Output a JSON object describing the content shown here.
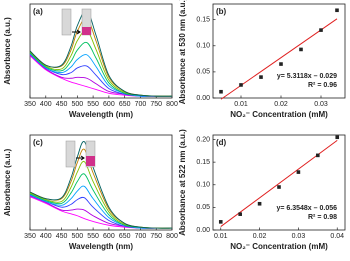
{
  "chart_data": [
    {
      "type": "line",
      "title": "(a)",
      "x_label": "Wavelength (nm)",
      "y_label": "Absorbance (a.u.)",
      "x": [
        350,
        400,
        450,
        480,
        500,
        530,
        560,
        600,
        650,
        700,
        750,
        800
      ],
      "xlim": [
        350,
        800
      ],
      "xticks": [
        350,
        400,
        450,
        500,
        550,
        600,
        650,
        700,
        750,
        800
      ],
      "ylim": [
        0,
        1
      ],
      "series": [
        {
          "color": "#ff00ff",
          "values": [
            0.45,
            0.3,
            0.21,
            0.17,
            0.15,
            0.12,
            0.09,
            0.05,
            0.03,
            0.02,
            0.02,
            0.02
          ]
        },
        {
          "color": "#b000e0",
          "values": [
            0.46,
            0.31,
            0.22,
            0.21,
            0.22,
            0.21,
            0.15,
            0.07,
            0.04,
            0.02,
            0.02,
            0.02
          ]
        },
        {
          "color": "#3040ff",
          "values": [
            0.47,
            0.32,
            0.25,
            0.27,
            0.32,
            0.34,
            0.24,
            0.1,
            0.04,
            0.02,
            0.02,
            0.02
          ]
        },
        {
          "color": "#00a0ff",
          "values": [
            0.47,
            0.32,
            0.27,
            0.33,
            0.41,
            0.46,
            0.33,
            0.13,
            0.05,
            0.02,
            0.02,
            0.02
          ]
        },
        {
          "color": "#00c060",
          "values": [
            0.48,
            0.33,
            0.29,
            0.39,
            0.51,
            0.59,
            0.42,
            0.16,
            0.05,
            0.03,
            0.02,
            0.02
          ]
        },
        {
          "color": "#80c000",
          "values": [
            0.49,
            0.34,
            0.31,
            0.45,
            0.61,
            0.72,
            0.51,
            0.19,
            0.06,
            0.03,
            0.02,
            0.02
          ]
        },
        {
          "color": "#c08000",
          "values": [
            0.5,
            0.35,
            0.34,
            0.51,
            0.71,
            0.85,
            0.6,
            0.22,
            0.07,
            0.03,
            0.02,
            0.02
          ]
        },
        {
          "color": "#006060",
          "values": [
            0.5,
            0.35,
            0.35,
            0.55,
            0.77,
            0.93,
            0.66,
            0.24,
            0.07,
            0.03,
            0.02,
            0.02
          ]
        }
      ]
    },
    {
      "type": "scatter",
      "title": "(b)",
      "x_label": "NO₂⁻ Concentration (mM)",
      "y_label": "Absorbance at 530 nm (a.u.)",
      "xlim": [
        0.003,
        0.036
      ],
      "xticks": [
        0.01,
        0.02,
        0.03
      ],
      "ylim": [
        0,
        0.18
      ],
      "yticks": [
        {
          "value": 0,
          "label": "0.00"
        },
        {
          "value": 0.05,
          "label": "0.05"
        },
        {
          "value": 0.1,
          "label": "0.10"
        },
        {
          "value": 0.15,
          "label": "0.15"
        }
      ],
      "series": [
        {
          "color": "#222222",
          "x": [
            0.005,
            0.01,
            0.015,
            0.02,
            0.025,
            0.03,
            0.034
          ],
          "values": [
            0.012,
            0.025,
            0.04,
            0.065,
            0.093,
            0.13,
            0.168
          ]
        }
      ],
      "fit": {
        "slope": 5.3118,
        "intercept": -0.029,
        "color": "#e02020"
      },
      "annotations": [
        "y= 5.3118x – 0.029",
        "R² = 0.96"
      ]
    },
    {
      "type": "line",
      "title": "(c)",
      "x_label": "Wavelength (nm)",
      "y_label": "Absorbance (a.u.)",
      "x": [
        350,
        400,
        450,
        480,
        500,
        522,
        550,
        600,
        650,
        700,
        750,
        800
      ],
      "xlim": [
        350,
        800
      ],
      "xticks": [
        350,
        400,
        450,
        500,
        550,
        600,
        650,
        700,
        750,
        800
      ],
      "ylim": [
        0,
        1
      ],
      "series": [
        {
          "color": "#ff00ff",
          "values": [
            0.35,
            0.28,
            0.2,
            0.17,
            0.15,
            0.12,
            0.09,
            0.05,
            0.03,
            0.02,
            0.02,
            0.02
          ]
        },
        {
          "color": "#b000e0",
          "values": [
            0.36,
            0.29,
            0.21,
            0.21,
            0.22,
            0.21,
            0.15,
            0.07,
            0.04,
            0.02,
            0.02,
            0.02
          ]
        },
        {
          "color": "#3040ff",
          "values": [
            0.37,
            0.3,
            0.24,
            0.27,
            0.32,
            0.34,
            0.24,
            0.1,
            0.04,
            0.02,
            0.02,
            0.02
          ]
        },
        {
          "color": "#00a0ff",
          "values": [
            0.37,
            0.3,
            0.26,
            0.33,
            0.41,
            0.46,
            0.33,
            0.13,
            0.05,
            0.02,
            0.02,
            0.02
          ]
        },
        {
          "color": "#00c060",
          "values": [
            0.38,
            0.31,
            0.28,
            0.39,
            0.51,
            0.59,
            0.42,
            0.16,
            0.05,
            0.03,
            0.02,
            0.02
          ]
        },
        {
          "color": "#80c000",
          "values": [
            0.39,
            0.32,
            0.3,
            0.45,
            0.61,
            0.72,
            0.51,
            0.19,
            0.06,
            0.03,
            0.02,
            0.02
          ]
        },
        {
          "color": "#c08000",
          "values": [
            0.4,
            0.33,
            0.33,
            0.51,
            0.71,
            0.85,
            0.6,
            0.22,
            0.07,
            0.03,
            0.02,
            0.02
          ]
        },
        {
          "color": "#006060",
          "values": [
            0.4,
            0.33,
            0.34,
            0.55,
            0.77,
            0.93,
            0.66,
            0.24,
            0.07,
            0.03,
            0.02,
            0.02
          ]
        }
      ]
    },
    {
      "type": "scatter",
      "title": "(d)",
      "x_label": "NO₂⁻ Concentration (mM)",
      "y_label": "Absorbance at 522 nm (a.u.)",
      "xlim": [
        0.008,
        0.042
      ],
      "xticks": [
        0.01,
        0.02,
        0.03,
        0.04
      ],
      "ylim": [
        0,
        0.21
      ],
      "yticks": [
        {
          "value": 0,
          "label": "0.00"
        },
        {
          "value": 0.05,
          "label": "0.05"
        },
        {
          "value": 0.1,
          "label": "0.10"
        },
        {
          "value": 0.15,
          "label": "0.15"
        },
        {
          "value": 0.2,
          "label": "0.20"
        }
      ],
      "series": [
        {
          "color": "#222222",
          "x": [
            0.01,
            0.015,
            0.02,
            0.025,
            0.03,
            0.035,
            0.04
          ],
          "values": [
            0.018,
            0.035,
            0.058,
            0.095,
            0.128,
            0.165,
            0.205
          ]
        }
      ],
      "fit": {
        "slope": 6.3548,
        "intercept": -0.056,
        "color": "#e02020"
      },
      "annotations": [
        "y= 6.3548x – 0.056",
        "R² = 0.98"
      ]
    }
  ]
}
